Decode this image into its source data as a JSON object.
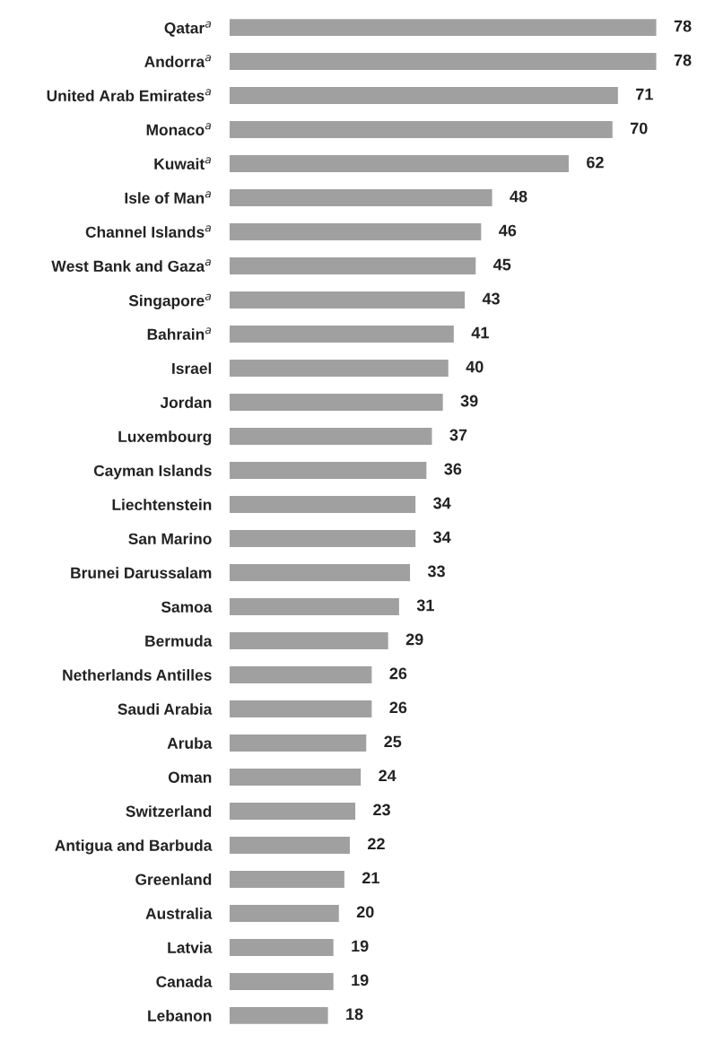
{
  "chart_data": {
    "type": "bar",
    "orientation": "horizontal",
    "categories": [
      "Qatar$^{a}$",
      "Andorra$^{a}$",
      "United Arab Emirates$^{a}$",
      "Monaco$^{a}$",
      "Kuwait$^{a}$",
      "Isle of Man$^{a}$",
      "Channel Islands$^{a}$",
      "West Bank and Gaza$^{a}$",
      "Singapore$^{a}$",
      "Bahrain$^{a}$",
      "Israel",
      "Jordan",
      "Luxembourg",
      "Cayman Islands",
      "Liechtenstein",
      "San Marino",
      "Brunei Darussalam",
      "Samoa",
      "Bermuda",
      "Netherlands Antilles",
      "Saudi Arabia",
      "Aruba",
      "Oman",
      "Switzerland",
      "Antigua and Barbuda",
      "Greenland",
      "Australia",
      "Latvia",
      "Canada",
      "Lebanon"
    ],
    "values": [
      78,
      78,
      71,
      70,
      62,
      48,
      46,
      45,
      43,
      41,
      40,
      39,
      37,
      36,
      34,
      34,
      33,
      31,
      29,
      26,
      26,
      25,
      24,
      23,
      22,
      21,
      20,
      19,
      19,
      18
    ],
    "color": "#a0a0a0",
    "tick_labels": "y",
    "data_labels": true,
    "grid": false,
    "legend": false
  }
}
